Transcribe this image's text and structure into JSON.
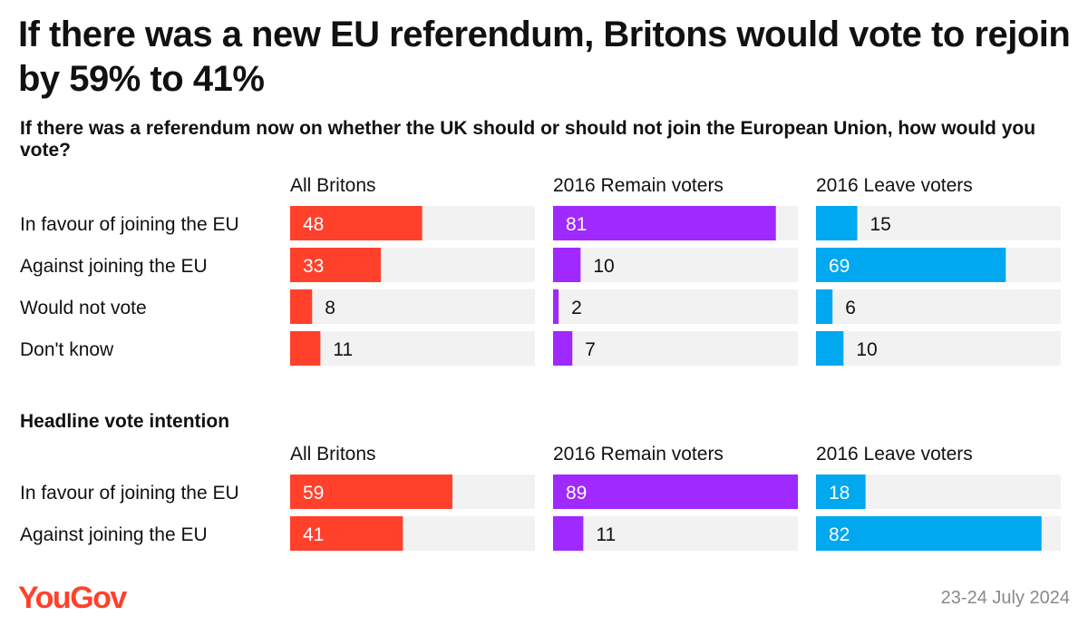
{
  "title": "If there was a new EU referendum, Britons would vote to rejoin by 59% to 41%",
  "subtitle": "If there was a referendum now on whether the UK should or should not join the European Union, how would you vote?",
  "colors": {
    "all_britons": "#ff412c",
    "remain_voters": "#9f29ff",
    "leave_voters": "#00a8f0",
    "track": "#f2f2f2"
  },
  "chart_data": [
    {
      "type": "bar",
      "orientation": "horizontal",
      "title": "If there was a referendum now on whether the UK should or should not join the European Union, how would you vote?",
      "categories": [
        "In favour of joining the EU",
        "Against joining the EU",
        "Would not vote",
        "Don't know"
      ],
      "series": [
        {
          "name": "All Britons",
          "values": [
            48,
            33,
            8,
            11
          ]
        },
        {
          "name": "2016 Remain voters",
          "values": [
            81,
            10,
            2,
            7
          ]
        },
        {
          "name": "2016 Leave voters",
          "values": [
            15,
            69,
            6,
            10
          ]
        }
      ],
      "xlim": [
        0,
        89
      ]
    },
    {
      "type": "bar",
      "orientation": "horizontal",
      "title": "Headline vote intention",
      "categories": [
        "In favour of joining the EU",
        "Against joining the EU"
      ],
      "series": [
        {
          "name": "All Britons",
          "values": [
            59,
            41
          ]
        },
        {
          "name": "2016 Remain voters",
          "values": [
            89,
            11
          ]
        },
        {
          "name": "2016 Leave voters",
          "values": [
            18,
            82
          ]
        }
      ],
      "xlim": [
        0,
        89
      ]
    }
  ],
  "footer": {
    "brand": "YouGov",
    "date": "23-24 July 2024"
  }
}
